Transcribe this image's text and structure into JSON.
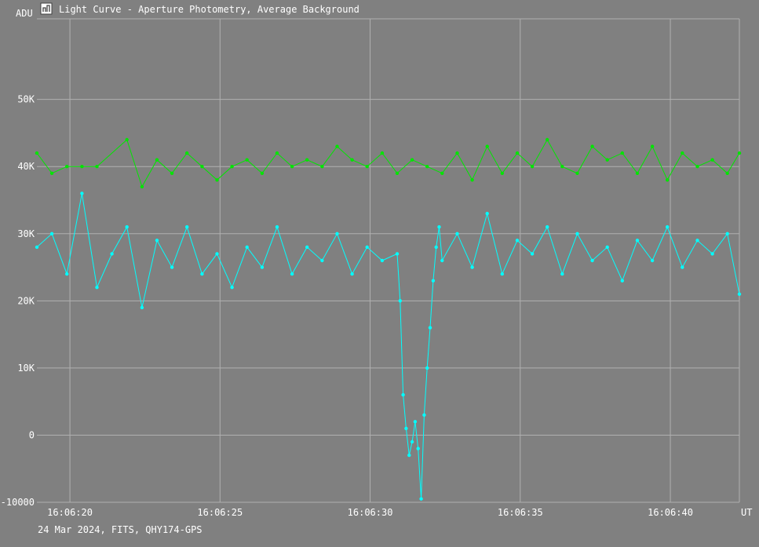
{
  "window": {
    "title": "Light Curve - Aperture Photometry, Average Background",
    "icon": "light-curve-app-icon"
  },
  "footer": "24 Mar 2024, FITS, QHY174-GPS",
  "colors": {
    "background": "#808080",
    "grid": "#b0b0b0",
    "text": "#ffffff",
    "series_cyan": "#00ffff",
    "series_green": "#00e600"
  },
  "chart_data": {
    "type": "line",
    "ylabel": "ADU",
    "xlabel": "UT",
    "y_ticks": [
      -10000,
      0,
      10000,
      20000,
      30000,
      40000,
      50000
    ],
    "y_tick_labels": [
      "-10000",
      "0",
      "10K",
      "20K",
      "30K",
      "40K",
      "50K"
    ],
    "x_ticks": [
      "16:06:20",
      "16:06:25",
      "16:06:30",
      "16:06:35",
      "16:06:40"
    ],
    "x_tick_seconds": [
      20,
      25,
      30,
      35,
      40
    ],
    "xlim_seconds": [
      18.9,
      42.3
    ],
    "ylim": [
      -10000,
      62000
    ],
    "grid": true,
    "markers": true,
    "series": [
      {
        "color": "#00ffff",
        "x": [
          18.9,
          19.4,
          19.9,
          20.4,
          20.9,
          21.4,
          21.9,
          22.4,
          22.9,
          23.4,
          23.9,
          24.4,
          24.9,
          25.4,
          25.9,
          26.4,
          26.9,
          27.4,
          27.9,
          28.4,
          28.9,
          29.4,
          29.9,
          30.4,
          30.9,
          31.0,
          31.1,
          31.2,
          31.3,
          31.4,
          31.5,
          31.6,
          31.7,
          31.8,
          31.9,
          32.0,
          32.1,
          32.2,
          32.3,
          32.4,
          32.9,
          33.4,
          33.9,
          34.4,
          34.9,
          35.4,
          35.9,
          36.4,
          36.9,
          37.4,
          37.9,
          38.4,
          38.9,
          39.4,
          39.9,
          40.4,
          40.9,
          41.4,
          41.9,
          42.3
        ],
        "y": [
          28000,
          30000,
          24000,
          36000,
          22000,
          27000,
          31000,
          19000,
          29000,
          25000,
          31000,
          24000,
          27000,
          22000,
          28000,
          25000,
          31000,
          24000,
          28000,
          26000,
          30000,
          24000,
          28000,
          26000,
          27000,
          20000,
          6000,
          1000,
          -3000,
          -1000,
          2000,
          -2000,
          -9500,
          3000,
          10000,
          16000,
          23000,
          28000,
          31000,
          26000,
          30000,
          25000,
          33000,
          24000,
          29000,
          27000,
          31000,
          24000,
          30000,
          26000,
          28000,
          23000,
          29000,
          26000,
          31000,
          25000,
          29000,
          27000,
          30000,
          21000
        ]
      },
      {
        "color": "#00e600",
        "x": [
          18.9,
          19.4,
          19.9,
          20.4,
          20.9,
          21.9,
          22.4,
          22.9,
          23.4,
          23.9,
          24.4,
          24.9,
          25.4,
          25.9,
          26.4,
          26.9,
          27.4,
          27.9,
          28.4,
          28.9,
          29.4,
          29.9,
          30.4,
          30.9,
          31.4,
          31.9,
          32.4,
          32.9,
          33.4,
          33.9,
          34.4,
          34.9,
          35.4,
          35.9,
          36.4,
          36.9,
          37.4,
          37.9,
          38.4,
          38.9,
          39.4,
          39.9,
          40.4,
          40.9,
          41.4,
          41.9,
          42.3
        ],
        "y": [
          42000,
          39000,
          40000,
          40000,
          40000,
          44000,
          37000,
          41000,
          39000,
          42000,
          40000,
          38000,
          40000,
          41000,
          39000,
          42000,
          40000,
          41000,
          40000,
          43000,
          41000,
          40000,
          42000,
          39000,
          41000,
          40000,
          39000,
          42000,
          38000,
          43000,
          39000,
          42000,
          40000,
          44000,
          40000,
          39000,
          43000,
          41000,
          42000,
          39000,
          43000,
          38000,
          42000,
          40000,
          41000,
          39000,
          42000
        ]
      }
    ]
  }
}
